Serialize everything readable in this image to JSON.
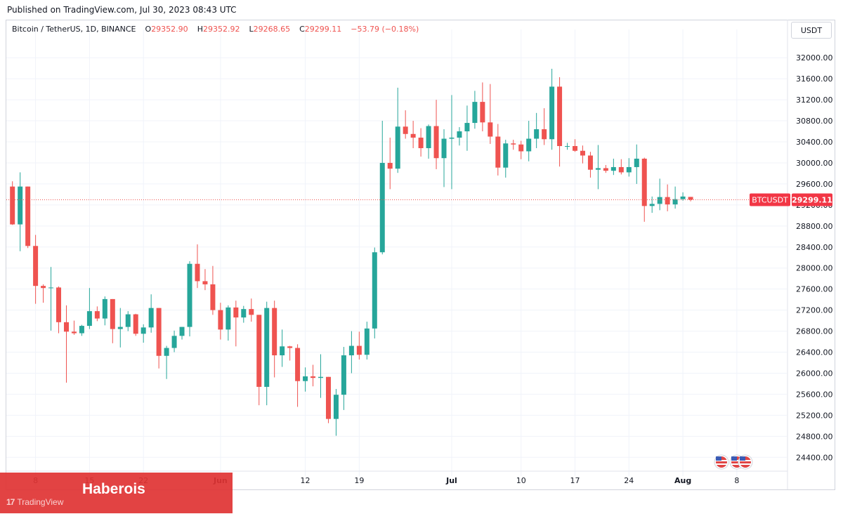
{
  "header": {
    "published": "Published on TradingView.com, Jul 30, 2023 08:43 UTC"
  },
  "legend": {
    "symbol": "Bitcoin / TetherUS, 1D, BINANCE",
    "o_label": "O",
    "o_value": "29352.90",
    "h_label": "H",
    "h_value": "29352.92",
    "l_label": "L",
    "l_value": "29268.65",
    "c_label": "C",
    "c_value": "29299.11",
    "change": "−53.79 (−0.18%)"
  },
  "currency": "USDT",
  "ticker": {
    "symbol": "BTCUSDT",
    "price": "29299.11"
  },
  "watermark": {
    "brand": "Haberois",
    "tv": "TradingView",
    "tv_mark": "17"
  },
  "colors": {
    "up": "#26a69a",
    "down": "#ef5350",
    "grid": "#f0f3fa",
    "text": "#131722",
    "label_bg": "#f23645"
  },
  "chart_data": {
    "type": "candlestick",
    "title": "Bitcoin / TetherUS, 1D, BINANCE",
    "ylim": [
      24150,
      32350
    ],
    "y_ticks": [
      24400,
      24800,
      25200,
      25600,
      26000,
      26400,
      26800,
      27200,
      27600,
      28000,
      28400,
      28800,
      29200,
      29600,
      30000,
      30400,
      30800,
      31200,
      31600,
      32000
    ],
    "y_tick_labels": [
      "24400.00",
      "24800.00",
      "25200.00",
      "25600.00",
      "26000.00",
      "26400.00",
      "26800.00",
      "27200.00",
      "27600.00",
      "28000.00",
      "28400.00",
      "28800.00",
      "29200.00",
      "29600.00",
      "30000.00",
      "30400.00",
      "30800.00",
      "31200.00",
      "31600.00",
      "32000.00"
    ],
    "x_domain": [
      0,
      98
    ],
    "x_ticks": [
      {
        "index": 3,
        "label": "8",
        "strong": false
      },
      {
        "index": 10,
        "label": "15",
        "strong": false
      },
      {
        "index": 17,
        "label": "22",
        "strong": false
      },
      {
        "index": 27,
        "label": "Jun",
        "strong": true
      },
      {
        "index": 38,
        "label": "12",
        "strong": false
      },
      {
        "index": 45,
        "label": "19",
        "strong": false
      },
      {
        "index": 57,
        "label": "Jul",
        "strong": true
      },
      {
        "index": 66,
        "label": "10",
        "strong": false
      },
      {
        "index": 73,
        "label": "17",
        "strong": false
      },
      {
        "index": 80,
        "label": "24",
        "strong": false
      },
      {
        "index": 87,
        "label": "Aug",
        "strong": true
      },
      {
        "index": 94,
        "label": "8",
        "strong": false
      }
    ],
    "last_price": 29299.11,
    "candles": [
      [
        29550,
        29650,
        28820,
        28830
      ],
      [
        28830,
        29820,
        28320,
        29550
      ],
      [
        29550,
        29550,
        28380,
        28420
      ],
      [
        28420,
        28630,
        27320,
        27660
      ],
      [
        27660,
        27690,
        27340,
        27620
      ],
      [
        27620,
        28020,
        26810,
        27630
      ],
      [
        27630,
        27650,
        26760,
        26970
      ],
      [
        26970,
        27290,
        25820,
        26790
      ],
      [
        26790,
        27000,
        26730,
        26760
      ],
      [
        26760,
        26920,
        26710,
        26900
      ],
      [
        26900,
        27620,
        26840,
        27180
      ],
      [
        27180,
        27270,
        26990,
        27040
      ],
      [
        27040,
        27460,
        26910,
        27410
      ],
      [
        27410,
        27410,
        26570,
        26840
      ],
      [
        26840,
        27240,
        26490,
        26880
      ],
      [
        26880,
        27180,
        26800,
        27120
      ],
      [
        27120,
        27130,
        26710,
        26750
      ],
      [
        26750,
        26930,
        26580,
        26870
      ],
      [
        26870,
        27500,
        26770,
        27240
      ],
      [
        27240,
        27240,
        26090,
        26330
      ],
      [
        26330,
        26520,
        25890,
        26480
      ],
      [
        26480,
        26810,
        26400,
        26710
      ],
      [
        26710,
        26880,
        26640,
        26880
      ],
      [
        26880,
        28130,
        26700,
        28080
      ],
      [
        28080,
        28450,
        27620,
        27750
      ],
      [
        27750,
        27980,
        27580,
        27690
      ],
      [
        27690,
        28040,
        27110,
        27200
      ],
      [
        27200,
        27340,
        26640,
        26830
      ],
      [
        26830,
        27290,
        26620,
        27250
      ],
      [
        27250,
        27380,
        26510,
        27060
      ],
      [
        27060,
        27280,
        26960,
        27220
      ],
      [
        27220,
        27420,
        26980,
        27110
      ],
      [
        27110,
        27110,
        25390,
        25740
      ],
      [
        25740,
        27360,
        25390,
        27240
      ],
      [
        27240,
        27380,
        25920,
        26340
      ],
      [
        26340,
        26830,
        26120,
        26510
      ],
      [
        26510,
        26520,
        26240,
        26480
      ],
      [
        26480,
        26550,
        25360,
        25850
      ],
      [
        25850,
        26110,
        25650,
        25940
      ],
      [
        25940,
        26160,
        25750,
        25910
      ],
      [
        25910,
        26360,
        25530,
        25930
      ],
      [
        25930,
        25930,
        25050,
        25130
      ],
      [
        25130,
        25700,
        24810,
        25590
      ],
      [
        25590,
        26500,
        25300,
        26340
      ],
      [
        26340,
        26800,
        26000,
        26520
      ],
      [
        26520,
        26790,
        26260,
        26350
      ],
      [
        26350,
        26980,
        26260,
        26850
      ],
      [
        26850,
        28390,
        26660,
        28300
      ],
      [
        28300,
        30800,
        28260,
        30000
      ],
      [
        30000,
        30480,
        29500,
        29890
      ],
      [
        29890,
        31430,
        29810,
        30690
      ],
      [
        30690,
        31000,
        30460,
        30550
      ],
      [
        30550,
        30800,
        30280,
        30480
      ],
      [
        30480,
        30660,
        30120,
        30280
      ],
      [
        30280,
        30730,
        30080,
        30700
      ],
      [
        30700,
        31200,
        29880,
        30090
      ],
      [
        30090,
        30640,
        29540,
        30460
      ],
      [
        30460,
        31290,
        29500,
        30480
      ],
      [
        30480,
        30680,
        30330,
        30600
      ],
      [
        30600,
        31090,
        30230,
        30760
      ],
      [
        30760,
        31370,
        30650,
        31160
      ],
      [
        31160,
        31530,
        30600,
        30770
      ],
      [
        30770,
        31500,
        30360,
        30500
      ],
      [
        30500,
        30740,
        29760,
        29910
      ],
      [
        29910,
        30440,
        29720,
        30370
      ],
      [
        30370,
        30440,
        30250,
        30350
      ],
      [
        30350,
        30420,
        30070,
        30220
      ],
      [
        30220,
        30800,
        30030,
        30460
      ],
      [
        30460,
        30950,
        30280,
        30640
      ],
      [
        30640,
        31040,
        30340,
        30450
      ],
      [
        30450,
        31790,
        30250,
        31450
      ],
      [
        31450,
        31630,
        29930,
        30320
      ],
      [
        30320,
        30380,
        30250,
        30320
      ],
      [
        30320,
        30450,
        30210,
        30230
      ],
      [
        30230,
        30330,
        29990,
        30140
      ],
      [
        30140,
        30210,
        29720,
        29870
      ],
      [
        29870,
        30340,
        29500,
        29900
      ],
      [
        29900,
        29960,
        29810,
        29850
      ],
      [
        29850,
        30080,
        29770,
        29920
      ],
      [
        29920,
        30070,
        29780,
        29820
      ],
      [
        29820,
        30090,
        29740,
        29920
      ],
      [
        29920,
        30350,
        29600,
        30080
      ],
      [
        30080,
        30100,
        28880,
        29180
      ],
      [
        29180,
        29360,
        29050,
        29220
      ],
      [
        29220,
        29700,
        29100,
        29350
      ],
      [
        29350,
        29590,
        29080,
        29210
      ],
      [
        29210,
        29550,
        29130,
        29310
      ],
      [
        29310,
        29440,
        29280,
        29360
      ],
      [
        29352.9,
        29352.92,
        29268.65,
        29299.11
      ]
    ]
  }
}
